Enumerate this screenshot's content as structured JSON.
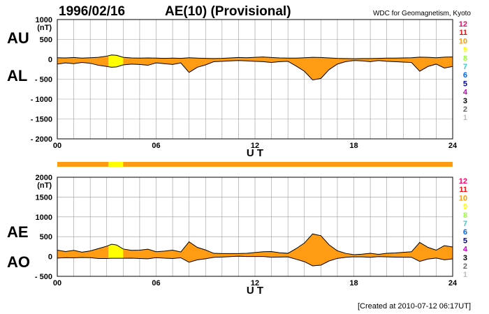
{
  "header": {
    "date": "1996/02/16",
    "index_title": "AE(10) (Provisional)",
    "source": "WDC for Geomagnetism, Kyoto"
  },
  "footer": {
    "created": "[Created at 2010-07-12 06:17UT]"
  },
  "legend": {
    "labels": [
      "12",
      "11",
      "10",
      "9",
      "8",
      "7",
      "6",
      "5",
      "4",
      "3",
      "2",
      "1"
    ],
    "colors": [
      "#ff0066",
      "#ee1111",
      "#ff9900",
      "#ffff00",
      "#99ff33",
      "#33cccc",
      "#0066ff",
      "#000099",
      "#cc00cc",
      "#000000",
      "#666666",
      "#bbbbbb"
    ]
  },
  "colors": {
    "fill_main": "#ff9c14",
    "fill_highlight": "#ffff00",
    "outline": "#000000",
    "grid": "#999999"
  },
  "chart_data": [
    {
      "type": "area",
      "panel": "AU/AL",
      "upper_label": "AU",
      "lower_label": "AL",
      "unit": "(nT)",
      "xlabel": "U T",
      "xlim": [
        0,
        24
      ],
      "xticks": [
        0,
        6,
        12,
        18,
        24
      ],
      "xtick_labels": [
        "00",
        "06",
        "12",
        "18",
        "24"
      ],
      "ylim": [
        -2000,
        1000
      ],
      "yticks": [
        1000,
        500,
        0,
        -500,
        -1000,
        -1500,
        -2000
      ],
      "ytick_labels": [
        "1000",
        "500",
        "0",
        "- 500",
        "- 1000",
        "- 1500",
        "- 2000"
      ],
      "grid": true,
      "highlight_hours": [
        3.1,
        4.0
      ],
      "series": [
        {
          "name": "AU",
          "x": [
            0,
            0.5,
            1,
            1.5,
            2,
            2.5,
            3,
            3.3,
            3.6,
            4,
            4.5,
            5,
            5.5,
            6,
            6.5,
            7,
            7.5,
            8,
            8.5,
            9,
            9.5,
            10,
            10.5,
            11,
            11.5,
            12,
            12.5,
            13,
            13.5,
            14,
            14.5,
            15,
            15.5,
            16,
            16.5,
            17,
            17.5,
            18,
            18.5,
            19,
            19.5,
            20,
            20.5,
            21,
            21.5,
            22,
            22.5,
            23,
            23.5,
            24
          ],
          "values": [
            40,
            35,
            45,
            30,
            40,
            50,
            80,
            110,
            100,
            50,
            35,
            30,
            35,
            30,
            25,
            30,
            25,
            40,
            30,
            25,
            20,
            25,
            35,
            45,
            40,
            50,
            60,
            45,
            35,
            30,
            30,
            40,
            50,
            45,
            35,
            25,
            20,
            15,
            20,
            20,
            25,
            30,
            30,
            35,
            40,
            55,
            50,
            40,
            55,
            60
          ]
        },
        {
          "name": "AL",
          "x": [
            0,
            0.5,
            1,
            1.5,
            2,
            2.5,
            3,
            3.3,
            3.6,
            4,
            4.5,
            5,
            5.5,
            6,
            6.5,
            7,
            7.5,
            8,
            8.5,
            9,
            9.5,
            10,
            10.5,
            11,
            11.5,
            12,
            12.5,
            13,
            13.5,
            14,
            14.5,
            15,
            15.5,
            16,
            16.5,
            17,
            17.5,
            18,
            18.5,
            19,
            19.5,
            20,
            20.5,
            21,
            21.5,
            22,
            22.5,
            23,
            23.5,
            24
          ],
          "values": [
            -120,
            -90,
            -110,
            -80,
            -100,
            -150,
            -180,
            -200,
            -190,
            -140,
            -120,
            -130,
            -150,
            -90,
            -110,
            -130,
            -90,
            -330,
            -200,
            -140,
            -60,
            -50,
            -40,
            -30,
            -40,
            -50,
            -60,
            -80,
            -60,
            -50,
            -170,
            -300,
            -520,
            -480,
            -260,
            -120,
            -60,
            -30,
            -40,
            -60,
            -30,
            -50,
            -60,
            -70,
            -80,
            -300,
            -180,
            -120,
            -220,
            -180
          ]
        }
      ]
    },
    {
      "type": "area",
      "panel": "AE/AO",
      "upper_label": "AE",
      "lower_label": "AO",
      "unit": "(nT)",
      "xlabel": "U T",
      "xlim": [
        0,
        24
      ],
      "xticks": [
        0,
        6,
        12,
        18,
        24
      ],
      "xtick_labels": [
        "00",
        "06",
        "12",
        "18",
        "24"
      ],
      "ylim": [
        -500,
        2000
      ],
      "yticks": [
        2000,
        1500,
        1000,
        500,
        0,
        -500
      ],
      "ytick_labels": [
        "2000",
        "1500",
        "1000",
        "500",
        "0",
        "- 500"
      ],
      "grid": true,
      "highlight_hours": [
        3.1,
        4.0
      ],
      "series": [
        {
          "name": "AE",
          "x": [
            0,
            0.5,
            1,
            1.5,
            2,
            2.5,
            3,
            3.3,
            3.6,
            4,
            4.5,
            5,
            5.5,
            6,
            6.5,
            7,
            7.5,
            8,
            8.5,
            9,
            9.5,
            10,
            10.5,
            11,
            11.5,
            12,
            12.5,
            13,
            13.5,
            14,
            14.5,
            15,
            15.5,
            16,
            16.5,
            17,
            17.5,
            18,
            18.5,
            19,
            19.5,
            20,
            20.5,
            21,
            21.5,
            22,
            22.5,
            23,
            23.5,
            24
          ],
          "values": [
            160,
            125,
            155,
            110,
            140,
            200,
            260,
            310,
            290,
            190,
            155,
            160,
            185,
            120,
            135,
            160,
            115,
            370,
            230,
            165,
            80,
            75,
            75,
            75,
            80,
            100,
            120,
            125,
            95,
            80,
            200,
            340,
            570,
            525,
            295,
            145,
            80,
            45,
            60,
            80,
            55,
            80,
            90,
            105,
            120,
            355,
            230,
            160,
            275,
            240
          ]
        },
        {
          "name": "AO",
          "x": [
            0,
            0.5,
            1,
            1.5,
            2,
            2.5,
            3,
            3.3,
            3.6,
            4,
            4.5,
            5,
            5.5,
            6,
            6.5,
            7,
            7.5,
            8,
            8.5,
            9,
            9.5,
            10,
            10.5,
            11,
            11.5,
            12,
            12.5,
            13,
            13.5,
            14,
            14.5,
            15,
            15.5,
            16,
            16.5,
            17,
            17.5,
            18,
            18.5,
            19,
            19.5,
            20,
            20.5,
            21,
            21.5,
            22,
            22.5,
            23,
            23.5,
            24
          ],
          "values": [
            -40,
            -28,
            -33,
            -25,
            -30,
            -50,
            -50,
            -45,
            -45,
            -45,
            -43,
            -50,
            -58,
            -30,
            -43,
            -50,
            -33,
            -145,
            -85,
            -58,
            -20,
            -13,
            -3,
            8,
            0,
            0,
            0,
            -18,
            -13,
            -10,
            -70,
            -130,
            -235,
            -218,
            -113,
            -48,
            -20,
            -8,
            -10,
            -20,
            -3,
            -10,
            -15,
            -18,
            -20,
            -123,
            -65,
            -40,
            -83,
            -60
          ]
        }
      ]
    }
  ]
}
